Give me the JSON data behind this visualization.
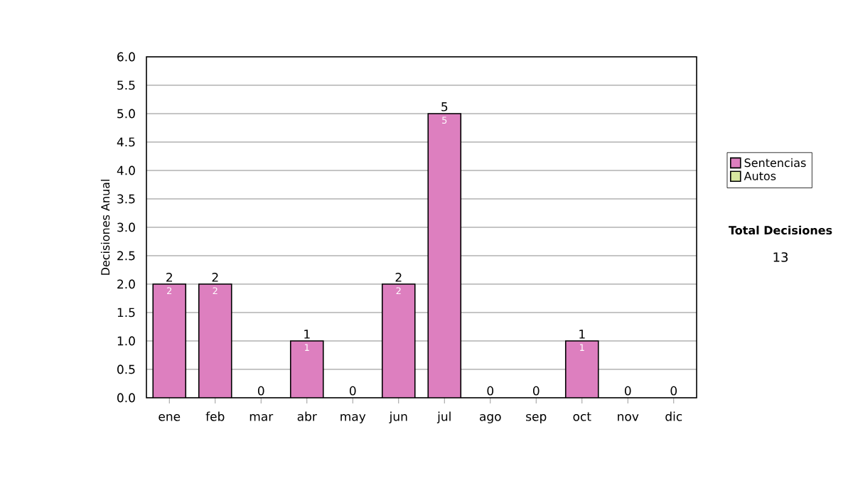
{
  "chart_data": {
    "type": "bar",
    "stacked": true,
    "ylabel": "Decisiones Anual",
    "categories": [
      "ene",
      "feb",
      "mar",
      "abr",
      "may",
      "jun",
      "jul",
      "ago",
      "sep",
      "oct",
      "nov",
      "dic"
    ],
    "series": [
      {
        "name": "Sentencias",
        "color": "#dd7fbf",
        "values": [
          2,
          2,
          0,
          1,
          0,
          2,
          5,
          0,
          0,
          1,
          0,
          0
        ],
        "value_labels": [
          "2",
          "2",
          null,
          "1",
          null,
          "2",
          "5",
          null,
          null,
          "1",
          null,
          null
        ]
      },
      {
        "name": "Autos",
        "color": "#d8e8a0",
        "values": [
          0,
          0,
          0,
          0,
          0,
          0,
          0,
          0,
          0,
          0,
          0,
          0
        ]
      }
    ],
    "totals": [
      "2",
      "2",
      "0",
      "1",
      "0",
      "2",
      "5",
      "0",
      "0",
      "1",
      "0",
      "0"
    ],
    "ylim": [
      0,
      6
    ],
    "yticks": [
      {
        "value": 0,
        "label": "0.0"
      },
      {
        "value": 0.5,
        "label": "0.5"
      },
      {
        "value": 1,
        "label": "1.0"
      },
      {
        "value": 1.5,
        "label": "1.5"
      },
      {
        "value": 2,
        "label": "2.0"
      },
      {
        "value": 2.5,
        "label": "2.5"
      },
      {
        "value": 3,
        "label": "3.0"
      },
      {
        "value": 3.5,
        "label": "3.5"
      },
      {
        "value": 4,
        "label": "4.0"
      },
      {
        "value": 4.5,
        "label": "4.5"
      },
      {
        "value": 5,
        "label": "5.0"
      },
      {
        "value": 5.5,
        "label": "5.5"
      },
      {
        "value": 6,
        "label": "6.0"
      }
    ],
    "grid": "y",
    "legend": "right",
    "annotations": [
      "Total Decisiones",
      "13"
    ]
  }
}
